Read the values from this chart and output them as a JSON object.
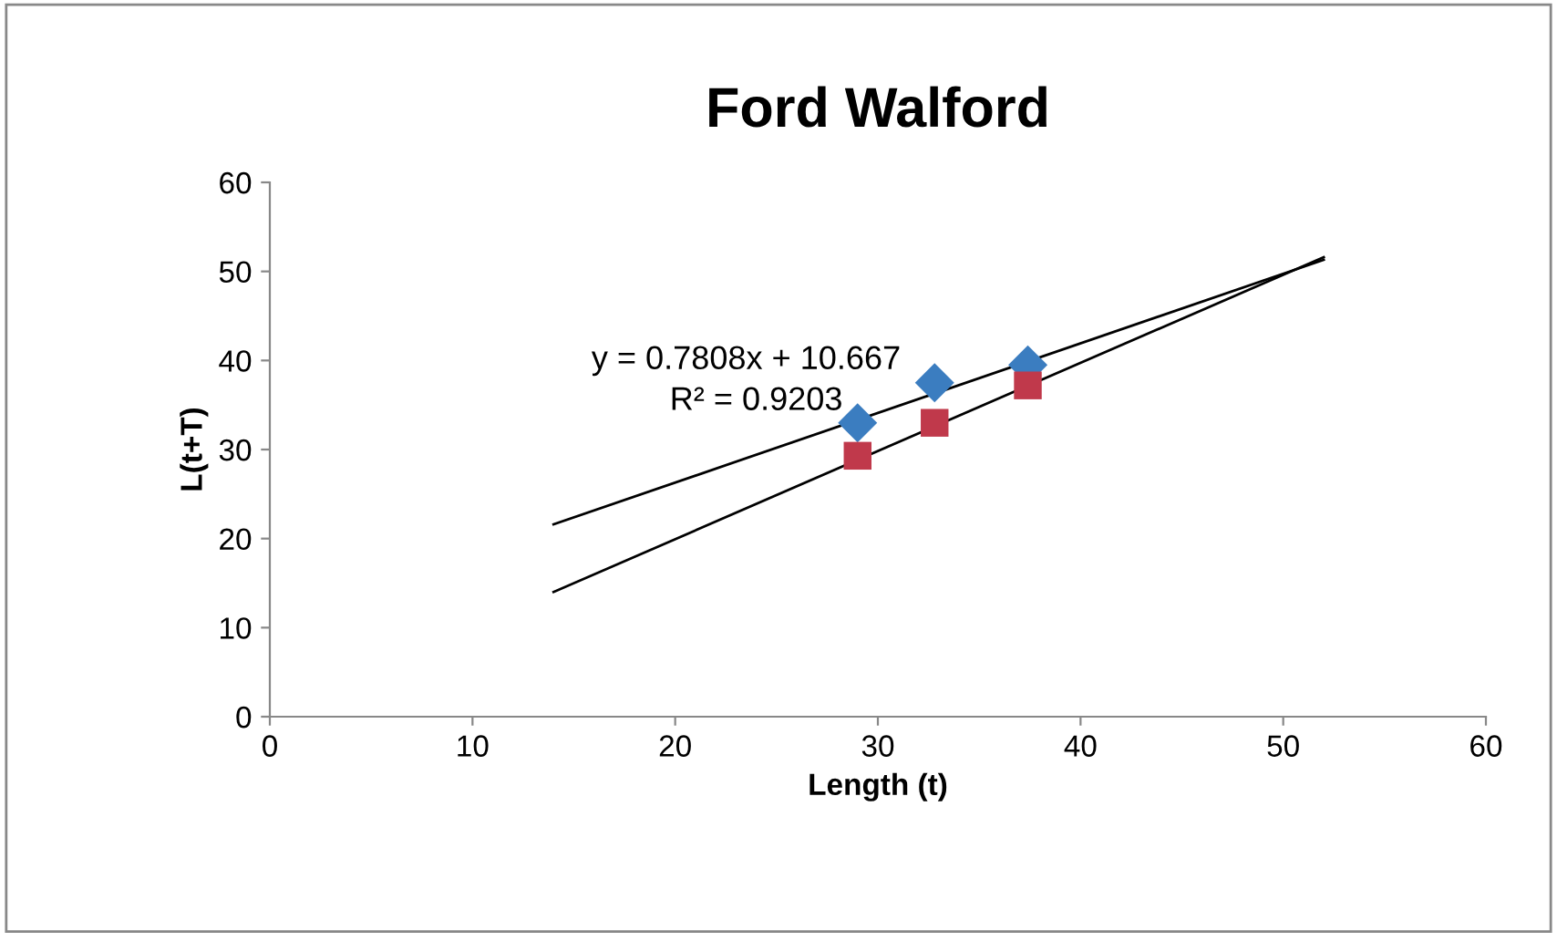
{
  "chart_data": {
    "type": "scatter",
    "title": "Ford Walford",
    "xlabel": "Length (t)",
    "ylabel": "L(t+T)",
    "xlim": [
      0,
      60
    ],
    "xticks": [
      0,
      10,
      20,
      30,
      40,
      50,
      60
    ],
    "ylim": [
      0,
      60
    ],
    "yticks": [
      0,
      10,
      20,
      30,
      40,
      50,
      60
    ],
    "grid": false,
    "series": [
      {
        "marker": "diamond",
        "color": "#3b7dc0",
        "x": [
          29,
          32.8,
          37.4
        ],
        "values": [
          33,
          37.5,
          39.5
        ]
      },
      {
        "marker": "square",
        "color": "#c0394b",
        "x": [
          29,
          32.8,
          37.4
        ],
        "values": [
          29.3,
          33,
          37.2
        ]
      },
      {
        "type": "line",
        "color": "#000000",
        "marker": "none",
        "x": [
          14,
          52
        ],
        "values": [
          21.6,
          51.3
        ]
      },
      {
        "type": "line",
        "color": "#000000",
        "marker": "none",
        "x": [
          14,
          52
        ],
        "values": [
          14,
          51.6
        ]
      }
    ],
    "annotations": [
      "y = 0.7808x + 10.667",
      "R² = 0.9203"
    ]
  }
}
